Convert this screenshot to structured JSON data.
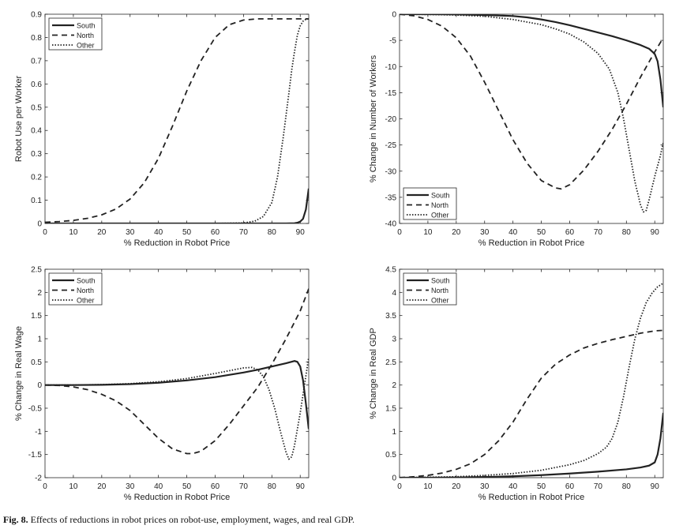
{
  "caption": {
    "label": "Fig. 8.",
    "text": "Effects of reductions in robot prices on robot-use, employment, wages, and real GDP."
  },
  "styles": {
    "South": {
      "dash": "",
      "width": 2.2,
      "color": "#222222"
    },
    "North": {
      "dash": "7,5",
      "width": 1.8,
      "color": "#222222"
    },
    "Other": {
      "dash": "1.5,2",
      "width": 1.8,
      "color": "#222222"
    }
  },
  "chart_data": [
    {
      "type": "line",
      "title": "",
      "xlabel": "% Reduction in Robot Price",
      "ylabel": "Robot Use per Worker",
      "xlim": [
        0,
        93
      ],
      "ylim": [
        0,
        0.9
      ],
      "xticks": [
        0,
        10,
        20,
        30,
        40,
        50,
        60,
        70,
        80,
        90
      ],
      "yticks": [
        0,
        0.1,
        0.2,
        0.3,
        0.4,
        0.5,
        0.6,
        0.7,
        0.8,
        0.9
      ],
      "legend": "top-left",
      "series": [
        {
          "name": "South",
          "x": [
            0,
            10,
            20,
            30,
            40,
            50,
            60,
            70,
            80,
            85,
            88,
            89,
            90,
            91,
            92,
            93
          ],
          "y": [
            0,
            0,
            0,
            0,
            0,
            0,
            0,
            0,
            0,
            0,
            0.001,
            0.003,
            0.008,
            0.02,
            0.06,
            0.15
          ]
        },
        {
          "name": "North",
          "x": [
            0,
            5,
            10,
            15,
            20,
            25,
            30,
            35,
            40,
            45,
            50,
            55,
            60,
            65,
            70,
            75,
            80,
            85,
            90,
            93
          ],
          "y": [
            0.005,
            0.008,
            0.013,
            0.022,
            0.037,
            0.062,
            0.105,
            0.175,
            0.28,
            0.42,
            0.57,
            0.7,
            0.8,
            0.855,
            0.875,
            0.88,
            0.88,
            0.88,
            0.88,
            0.88
          ]
        },
        {
          "name": "Other",
          "x": [
            0,
            60,
            70,
            74,
            77,
            80,
            82,
            84,
            86,
            87,
            88,
            89,
            90,
            91,
            92,
            93
          ],
          "y": [
            0,
            0,
            0.002,
            0.01,
            0.03,
            0.09,
            0.2,
            0.37,
            0.56,
            0.66,
            0.74,
            0.81,
            0.85,
            0.87,
            0.878,
            0.88
          ]
        }
      ]
    },
    {
      "type": "line",
      "title": "",
      "xlabel": "% Reduction in Robot Price",
      "ylabel": "% Change in Number of Workers",
      "xlim": [
        0,
        93
      ],
      "ylim": [
        -40,
        0
      ],
      "xticks": [
        0,
        10,
        20,
        30,
        40,
        50,
        60,
        70,
        80,
        90
      ],
      "yticks": [
        0,
        -5,
        -10,
        -15,
        -20,
        -25,
        -30,
        -35,
        -40
      ],
      "legend": "bottom-left",
      "series": [
        {
          "name": "South",
          "x": [
            0,
            10,
            20,
            30,
            40,
            45,
            50,
            55,
            60,
            65,
            70,
            75,
            80,
            85,
            88,
            90,
            91,
            92,
            93
          ],
          "y": [
            0,
            0,
            -0.05,
            -0.15,
            -0.35,
            -0.6,
            -1.0,
            -1.5,
            -2.1,
            -2.8,
            -3.5,
            -4.2,
            -5.0,
            -5.9,
            -6.6,
            -7.6,
            -9.0,
            -12.5,
            -17.8
          ]
        },
        {
          "name": "North",
          "x": [
            0,
            5,
            10,
            15,
            20,
            25,
            30,
            35,
            40,
            45,
            50,
            55,
            57,
            60,
            65,
            70,
            75,
            80,
            85,
            90,
            93
          ],
          "y": [
            0,
            -0.3,
            -1.0,
            -2.3,
            -4.5,
            -8.0,
            -13.0,
            -18.5,
            -24.0,
            -28.5,
            -31.8,
            -33.2,
            -33.4,
            -32.6,
            -29.8,
            -26.2,
            -22.0,
            -17.2,
            -12.0,
            -7.2,
            -4.5
          ]
        },
        {
          "name": "Other",
          "x": [
            0,
            10,
            20,
            30,
            40,
            50,
            55,
            60,
            65,
            70,
            74,
            77,
            79,
            81,
            83,
            85,
            86,
            87,
            88,
            90,
            92,
            93
          ],
          "y": [
            0,
            -0.05,
            -0.15,
            -0.4,
            -1.0,
            -2.0,
            -2.8,
            -3.8,
            -5.3,
            -7.5,
            -10.5,
            -15.0,
            -20.0,
            -26.0,
            -32.0,
            -36.5,
            -37.8,
            -37.5,
            -35.5,
            -31.0,
            -27.0,
            -24.5
          ]
        }
      ]
    },
    {
      "type": "line",
      "title": "",
      "xlabel": "% Reduction in Robot Price",
      "ylabel": "% Change in Real Wage",
      "xlim": [
        0,
        93
      ],
      "ylim": [
        -2,
        2.5
      ],
      "xticks": [
        0,
        10,
        20,
        30,
        40,
        50,
        60,
        70,
        80,
        90
      ],
      "yticks": [
        2.5,
        2,
        1.5,
        1,
        0.5,
        0,
        -0.5,
        -1,
        -1.5,
        -2
      ],
      "legend": "top-left",
      "series": [
        {
          "name": "South",
          "x": [
            0,
            10,
            20,
            30,
            40,
            50,
            60,
            70,
            75,
            80,
            85,
            88,
            89,
            90,
            91,
            92,
            93
          ],
          "y": [
            0,
            0,
            0.005,
            0.02,
            0.05,
            0.1,
            0.17,
            0.27,
            0.33,
            0.4,
            0.47,
            0.52,
            0.5,
            0.4,
            0.1,
            -0.4,
            -0.95
          ]
        },
        {
          "name": "North",
          "x": [
            0,
            5,
            10,
            15,
            20,
            25,
            30,
            35,
            40,
            45,
            50,
            52,
            55,
            60,
            65,
            70,
            75,
            80,
            85,
            90,
            93
          ],
          "y": [
            0,
            -0.01,
            -0.04,
            -0.1,
            -0.2,
            -0.34,
            -0.55,
            -0.85,
            -1.15,
            -1.38,
            -1.48,
            -1.48,
            -1.43,
            -1.2,
            -0.85,
            -0.45,
            -0.05,
            0.45,
            1.0,
            1.6,
            2.08
          ]
        },
        {
          "name": "Other",
          "x": [
            0,
            10,
            20,
            30,
            40,
            50,
            60,
            65,
            70,
            73,
            75,
            77,
            79,
            81,
            83,
            85,
            86,
            87,
            88,
            90,
            92,
            93
          ],
          "y": [
            0,
            0,
            0.01,
            0.03,
            0.07,
            0.14,
            0.25,
            0.31,
            0.37,
            0.38,
            0.33,
            0.18,
            -0.1,
            -0.5,
            -1.0,
            -1.45,
            -1.6,
            -1.55,
            -1.3,
            -0.6,
            0.2,
            0.6
          ]
        }
      ]
    },
    {
      "type": "line",
      "title": "",
      "xlabel": "% Reduction in Robot Price",
      "ylabel": "% Change in Real GDP",
      "xlim": [
        0,
        93
      ],
      "ylim": [
        0,
        4.5
      ],
      "xticks": [
        0,
        10,
        20,
        30,
        40,
        50,
        60,
        70,
        80,
        90
      ],
      "yticks": [
        0,
        0.5,
        1,
        1.5,
        2,
        2.5,
        3,
        3.5,
        4,
        4.5
      ],
      "legend": "top-left",
      "series": [
        {
          "name": "South",
          "x": [
            0,
            10,
            20,
            30,
            40,
            50,
            60,
            70,
            80,
            85,
            88,
            90,
            91,
            92,
            93
          ],
          "y": [
            0,
            0,
            0.005,
            0.015,
            0.03,
            0.055,
            0.09,
            0.13,
            0.18,
            0.22,
            0.26,
            0.33,
            0.5,
            0.85,
            1.4
          ]
        },
        {
          "name": "North",
          "x": [
            0,
            5,
            10,
            15,
            20,
            25,
            30,
            35,
            40,
            45,
            50,
            55,
            60,
            65,
            70,
            75,
            80,
            85,
            90,
            93
          ],
          "y": [
            0,
            0.02,
            0.05,
            0.1,
            0.18,
            0.3,
            0.5,
            0.8,
            1.2,
            1.7,
            2.15,
            2.45,
            2.65,
            2.8,
            2.9,
            2.98,
            3.05,
            3.12,
            3.17,
            3.18
          ]
        },
        {
          "name": "Other",
          "x": [
            0,
            10,
            20,
            30,
            40,
            50,
            60,
            65,
            70,
            73,
            75,
            77,
            79,
            81,
            83,
            85,
            87,
            89,
            91,
            93
          ],
          "y": [
            0,
            0.01,
            0.02,
            0.05,
            0.09,
            0.16,
            0.28,
            0.37,
            0.52,
            0.66,
            0.85,
            1.2,
            1.75,
            2.4,
            3.0,
            3.45,
            3.78,
            3.98,
            4.12,
            4.2
          ]
        }
      ]
    }
  ]
}
